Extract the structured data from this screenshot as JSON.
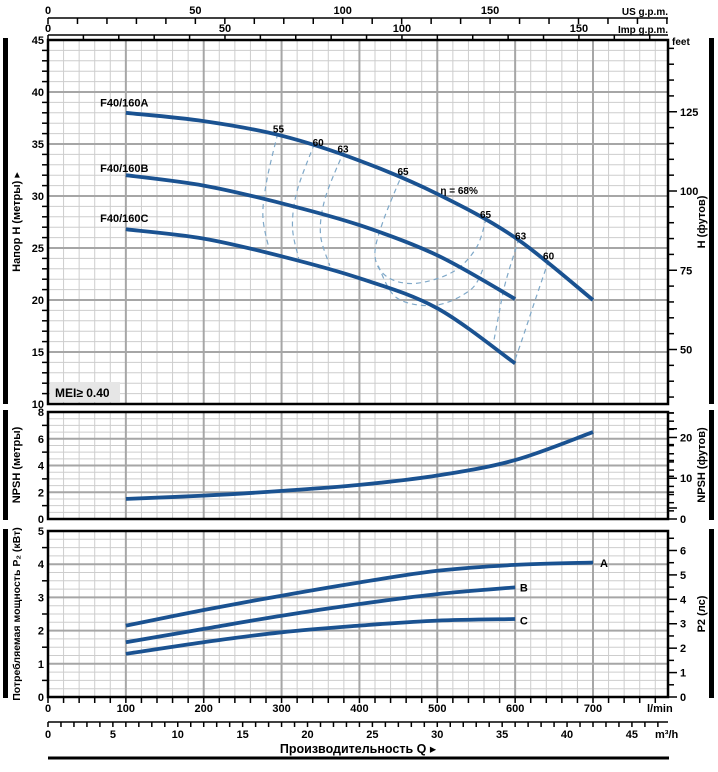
{
  "axes": {
    "us_gpm": {
      "unit": "US g.p.m.",
      "labels": [
        0,
        50,
        100,
        150
      ]
    },
    "imp_gpm": {
      "unit": "Imp g.p.m.",
      "labels": [
        0,
        50,
        100,
        150
      ]
    },
    "flow_lmin": {
      "unit": "l/min",
      "labels": [
        0,
        100,
        200,
        300,
        400,
        500,
        600,
        700
      ]
    },
    "flow_m3h": {
      "unit": "m³/h",
      "labels": [
        0,
        5,
        10,
        15,
        20,
        25,
        30,
        35,
        40,
        45
      ]
    },
    "head_m": {
      "labels": [
        45,
        40,
        35,
        30,
        25,
        20,
        15,
        10
      ]
    },
    "head_ft": {
      "unit": "feet",
      "labels": [
        125,
        100,
        75,
        50
      ]
    },
    "npsh_m": {
      "labels": [
        8,
        6,
        4,
        2,
        0
      ]
    },
    "npsh_ft": {
      "labels": [
        20,
        10,
        0
      ]
    },
    "p2_kw": {
      "labels": [
        5,
        4,
        3,
        2,
        1,
        0
      ]
    },
    "p2_hp": {
      "labels": [
        6,
        5,
        4,
        3,
        2,
        1,
        0
      ]
    }
  },
  "axis_labels": {
    "head_left": "Напор H (метры) ▸",
    "head_right": "H (футов)",
    "npsh_left": "NPSH (метры)",
    "npsh_right": "NPSH (футов)",
    "power_left": "Потребляемая мощность P₂ (кВт)",
    "power_right": "P2 (лс)",
    "flow": "Производительность Q ▸"
  },
  "mei_label": "MEI≥ 0.40",
  "efficiency_labels": [
    {
      "text": "55",
      "q": 296,
      "h": 36.1
    },
    {
      "text": "60",
      "q": 347,
      "h": 34.8
    },
    {
      "text": "63",
      "q": 379,
      "h": 34.2
    },
    {
      "text": "65",
      "q": 456,
      "h": 32.0
    },
    {
      "text": "η = 68%",
      "q": 528,
      "h": 30.2
    },
    {
      "text": "65",
      "q": 562,
      "h": 27.9
    },
    {
      "text": "63",
      "q": 607,
      "h": 25.8
    },
    {
      "text": "60",
      "q": 643,
      "h": 23.9
    }
  ],
  "colors": {
    "curve": "#1a5291",
    "contour": "#7fa8c8",
    "grid_minor": "#cdcdcd",
    "grid_major": "#a6a6a6",
    "border": "#000000",
    "mei_bg": "#e6e6e6"
  },
  "chart_data": [
    {
      "type": "line",
      "panel": "head",
      "title": "Head vs flow",
      "xlabel": "Производительность Q (l/min)",
      "ylabel": "Напор H (метры)",
      "xlim": [
        0,
        796
      ],
      "ylim": [
        10,
        45
      ],
      "series": [
        {
          "name": "F40/160A",
          "label_q": 67,
          "label_h": 38.6,
          "points": [
            [
              100,
              38
            ],
            [
              200,
              37.2
            ],
            [
              300,
              35.8
            ],
            [
              400,
              33.4
            ],
            [
              500,
              30.2
            ],
            [
              600,
              26.0
            ],
            [
              700,
              20
            ]
          ]
        },
        {
          "name": "F40/160B",
          "label_q": 67,
          "label_h": 32.3,
          "points": [
            [
              100,
              32
            ],
            [
              200,
              31.0
            ],
            [
              300,
              29.3
            ],
            [
              400,
              27.2
            ],
            [
              500,
              24.3
            ],
            [
              600,
              20.1
            ]
          ]
        },
        {
          "name": "F40/160C",
          "label_q": 67,
          "label_h": 27.5,
          "points": [
            [
              100,
              26.8
            ],
            [
              200,
              25.9
            ],
            [
              300,
              24.2
            ],
            [
              400,
              22.1
            ],
            [
              500,
              19.2
            ],
            [
              600,
              13.9
            ]
          ]
        }
      ],
      "contours": [
        {
          "eta": 55,
          "points": [
            [
              295,
              36.0
            ],
            [
              281,
              31.5
            ],
            [
              276,
              28.0
            ],
            [
              284,
              24.9
            ]
          ]
        },
        {
          "eta": 60,
          "points": [
            [
              342,
              35.0
            ],
            [
              320,
              30.5
            ],
            [
              314,
              27.0
            ],
            [
              322,
              24.0
            ]
          ]
        },
        {
          "eta": 63,
          "points": [
            [
              380,
              34.3
            ],
            [
              356,
              29.8
            ],
            [
              350,
              26.3
            ],
            [
              362,
              23.3
            ]
          ]
        },
        {
          "eta": 65,
          "points": [
            [
              456,
              32.3
            ],
            [
              430,
              27.5
            ],
            [
              420,
              24.2
            ],
            [
              436,
              22.2
            ],
            [
              472,
              21.6
            ],
            [
              520,
              22.7
            ],
            [
              550,
              25.0
            ],
            [
              563,
              27.9
            ]
          ]
        },
        {
          "eta": 65,
          "points": [
            [
              424,
              23.3
            ],
            [
              448,
              20.2
            ],
            [
              498,
              19.5
            ],
            [
              543,
              21.0
            ],
            [
              560,
              23.2
            ]
          ]
        },
        {
          "eta": 63,
          "points": [
            [
              605,
              25.9
            ],
            [
              588,
              21.8
            ],
            [
              579,
              18.6
            ],
            [
              573,
              16.2
            ]
          ]
        },
        {
          "eta": 60,
          "points": [
            [
              643,
              23.8
            ],
            [
              624,
              19.6
            ],
            [
              609,
              16.2
            ],
            [
              599,
              14.1
            ]
          ]
        }
      ]
    },
    {
      "type": "line",
      "panel": "npsh",
      "title": "NPSH vs flow",
      "ylabel": "NPSH (метры)",
      "xlim": [
        0,
        796
      ],
      "ylim": [
        0,
        8
      ],
      "series": [
        {
          "name": "NPSH",
          "points": [
            [
              100,
              1.5
            ],
            [
              200,
              1.75
            ],
            [
              300,
              2.1
            ],
            [
              400,
              2.55
            ],
            [
              500,
              3.25
            ],
            [
              600,
              4.4
            ],
            [
              700,
              6.5
            ]
          ]
        }
      ]
    },
    {
      "type": "line",
      "panel": "power",
      "title": "P2 vs flow",
      "ylabel": "Потребляемая мощность P2 (кВт)",
      "xlim": [
        0,
        796
      ],
      "ylim": [
        0,
        5
      ],
      "series": [
        {
          "name": "A",
          "label_q": 709,
          "label_v": 3.92,
          "points": [
            [
              100,
              2.15
            ],
            [
              200,
              2.62
            ],
            [
              300,
              3.05
            ],
            [
              400,
              3.45
            ],
            [
              500,
              3.8
            ],
            [
              600,
              3.98
            ],
            [
              700,
              4.05
            ]
          ]
        },
        {
          "name": "B",
          "label_q": 606,
          "label_v": 3.18,
          "points": [
            [
              100,
              1.65
            ],
            [
              200,
              2.05
            ],
            [
              300,
              2.45
            ],
            [
              400,
              2.8
            ],
            [
              500,
              3.1
            ],
            [
              600,
              3.3
            ]
          ]
        },
        {
          "name": "C",
          "label_q": 606,
          "label_v": 2.18,
          "points": [
            [
              100,
              1.3
            ],
            [
              200,
              1.65
            ],
            [
              300,
              1.95
            ],
            [
              400,
              2.15
            ],
            [
              500,
              2.3
            ],
            [
              600,
              2.35
            ]
          ]
        }
      ]
    }
  ]
}
